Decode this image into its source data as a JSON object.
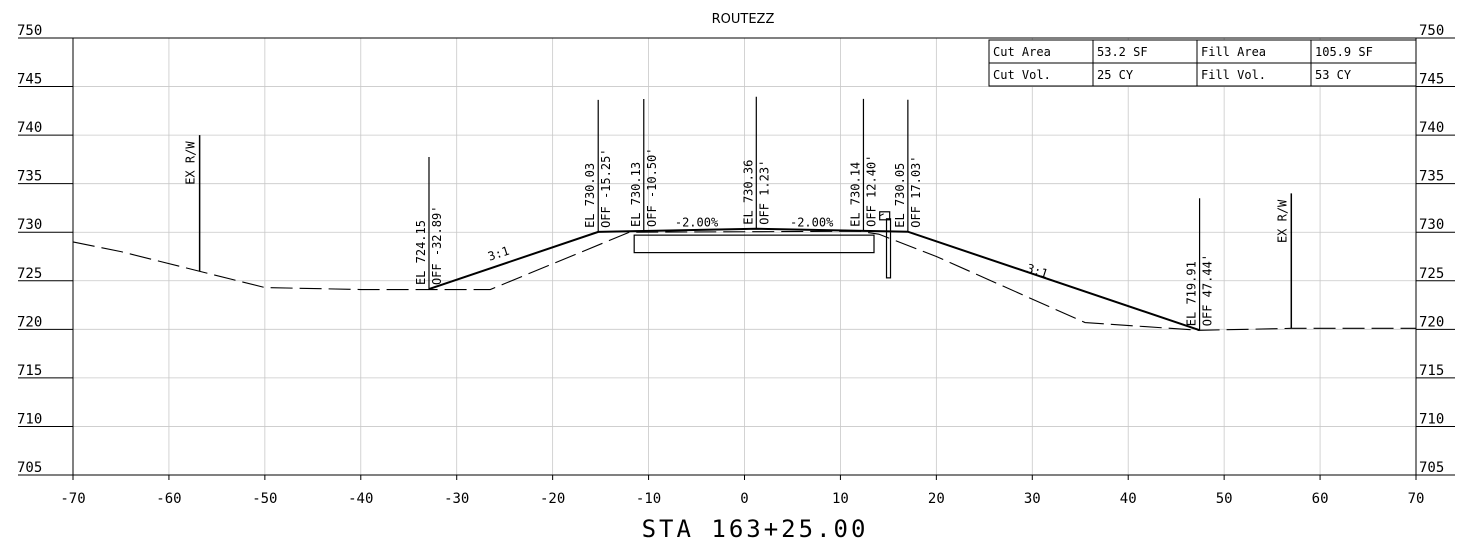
{
  "title": "ROUTEZZ",
  "station": "STA 163+25.00",
  "axes": {
    "x_ticks": [
      "-70",
      "-60",
      "-50",
      "-40",
      "-30",
      "-20",
      "-10",
      "0",
      "10",
      "20",
      "30",
      "40",
      "50",
      "60",
      "70"
    ],
    "y_ticks": [
      "750",
      "745",
      "740",
      "735",
      "730",
      "725",
      "720",
      "715",
      "710",
      "705"
    ]
  },
  "quantities": {
    "cut_area_label": "Cut Area",
    "cut_area_value": "53.2 SF",
    "fill_area_label": "Fill Area",
    "fill_area_value": "105.9 SF",
    "cut_vol_label": "Cut Vol.",
    "cut_vol_value": "25 CY",
    "fill_vol_label": "Fill Vol.",
    "fill_vol_value": "53 CY"
  },
  "labels": {
    "exrw_left": "EX R/W",
    "exrw_right": "EX R/W",
    "pt1_el": "EL 724.15",
    "pt1_off": "OFF -32.89'",
    "pt2_el": "EL 730.03",
    "pt2_off": "OFF -15.25'",
    "pt3_el": "EL 730.13",
    "pt3_off": "OFF -10.50'",
    "pt4_el": "EL 730.36",
    "pt4_off": "OFF 1.23'",
    "pt5_el": "EL 730.14",
    "pt5_off": "OFF 12.40'",
    "pt6_el": "EL 730.05",
    "pt6_off": "OFF 17.03'",
    "pt7_el": "EL 719.91",
    "pt7_off": "OFF 47.44'",
    "slope_left": "3:1",
    "slope_right": "3:1",
    "cross_left": "-2.00%",
    "cross_right": "-2.00%"
  },
  "chart_data": {
    "type": "cross-section",
    "title": "ROUTEZZ",
    "xlabel": "STA 163+25.00",
    "xlim": [
      -70,
      70
    ],
    "ylim": [
      705,
      750
    ],
    "grid": true,
    "existing_ground": [
      [
        -70,
        729.0
      ],
      [
        -65,
        728.0
      ],
      [
        -50,
        724.3
      ],
      [
        -40,
        724.1
      ],
      [
        -26.5,
        724.1
      ],
      [
        -12,
        730.0
      ],
      [
        -11,
        730.0
      ],
      [
        12,
        730.1
      ],
      [
        14,
        729.8
      ],
      [
        20,
        727.5
      ],
      [
        35.5,
        720.7
      ],
      [
        47.4,
        719.9
      ],
      [
        57,
        720.1
      ],
      [
        70,
        720.1
      ]
    ],
    "proposed_template": [
      [
        -32.89,
        724.15
      ],
      [
        -15.25,
        730.03
      ],
      [
        -10.5,
        730.13
      ],
      [
        1.23,
        730.36
      ],
      [
        12.4,
        730.14
      ],
      [
        17.03,
        730.05
      ],
      [
        47.44,
        719.91
      ]
    ],
    "exrw_left": [
      -56.8,
      726.0,
      740.0
    ],
    "exrw_right": [
      57.0,
      720.1,
      734.0
    ],
    "pavement_box": [
      [
        -11.5,
        729.7
      ],
      [
        13.5,
        727.9
      ]
    ],
    "post": [
      [
        14.3,
        732.0
      ],
      [
        14.7,
        725.3
      ]
    ],
    "callouts": [
      {
        "x": -32.89,
        "y": 724.15
      },
      {
        "x": -15.25,
        "y": 730.03
      },
      {
        "x": -10.5,
        "y": 730.13
      },
      {
        "x": 1.23,
        "y": 730.36
      },
      {
        "x": 12.4,
        "y": 730.14
      },
      {
        "x": 17.03,
        "y": 730.05
      },
      {
        "x": 47.44,
        "y": 719.91
      }
    ],
    "slope_labels": [
      {
        "x": -25.5,
        "y": 727.4
      },
      {
        "x": 30.4,
        "y": 725.6
      }
    ],
    "cross_slope_labels": [
      {
        "x": -5.0,
        "y": 730.6
      },
      {
        "x": 7.0,
        "y": 730.6
      }
    ]
  }
}
